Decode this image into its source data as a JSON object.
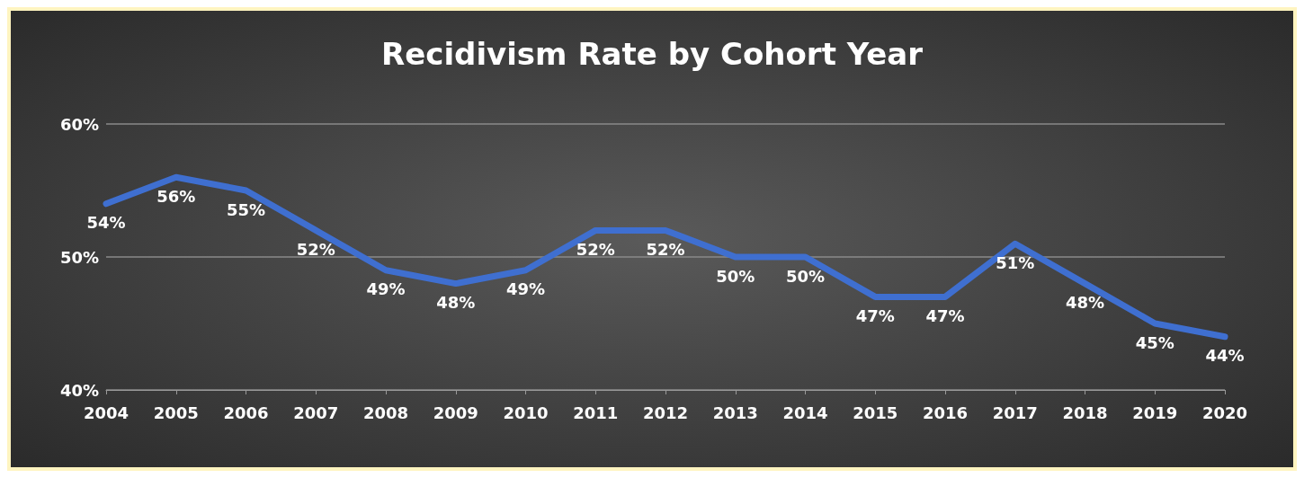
{
  "chart_data": {
    "type": "line",
    "title": "Recidivism Rate by Cohort Year",
    "categories": [
      "2004",
      "2005",
      "2006",
      "2007",
      "2008",
      "2009",
      "2010",
      "2011",
      "2012",
      "2013",
      "2014",
      "2015",
      "2016",
      "2017",
      "2018",
      "2019",
      "2020"
    ],
    "series": [
      {
        "color": "#3f6fd0",
        "values": [
          54,
          56,
          55,
          52,
          49,
          48,
          49,
          52,
          52,
          50,
          50,
          47,
          47,
          51,
          48,
          45,
          44
        ],
        "value_labels": [
          "54%",
          "56%",
          "55%",
          "52%",
          "49%",
          "48%",
          "49%",
          "52%",
          "52%",
          "50%",
          "50%",
          "47%",
          "47%",
          "51%",
          "48%",
          "45%",
          "44%"
        ]
      }
    ],
    "ylim": [
      40,
      60
    ],
    "yticks": [
      {
        "value": 40,
        "label": "40%"
      },
      {
        "value": 50,
        "label": "50%"
      },
      {
        "value": 60,
        "label": "60%"
      }
    ],
    "grid": "y",
    "marker": "none",
    "line_style": "solid"
  }
}
